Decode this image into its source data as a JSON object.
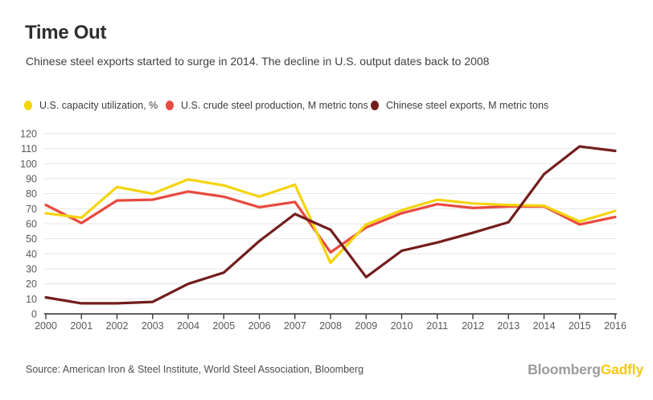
{
  "header": {
    "title": "Time Out",
    "subtitle": "Chinese steel exports started to surge in 2014. The decline in U.S. output dates back to 2008"
  },
  "legend": [
    {
      "label": "U.S. capacity utilization, %",
      "color": "#f5d40c"
    },
    {
      "label": "U.S. crude steel production, M metric tons",
      "color": "#e8493e"
    },
    {
      "label": "Chinese steel exports, M metric tons",
      "color": "#731d1d"
    }
  ],
  "chart_data": {
    "type": "line",
    "title": "Time Out",
    "subtitle": "Chinese steel exports started to surge in 2014. The decline in U.S. output dates back to 2008",
    "x": [
      2000,
      2001,
      2002,
      2003,
      2004,
      2005,
      2006,
      2007,
      2008,
      2009,
      2010,
      2011,
      2012,
      2013,
      2014,
      2015,
      2016
    ],
    "series": [
      {
        "name": "U.S. capacity utilization, %",
        "color": "#f5d40c",
        "values": [
          67,
          64,
          84.5,
          80,
          89.5,
          85.5,
          78,
          86,
          34,
          59.5,
          69,
          76,
          73.5,
          72.5,
          72,
          61.5,
          68.5
        ]
      },
      {
        "name": "U.S. crude steel production, M metric tons",
        "color": "#e8493e",
        "values": [
          72.5,
          60.5,
          75.5,
          76,
          81.5,
          78,
          71,
          74.5,
          41,
          57.5,
          67,
          73,
          70.5,
          71.5,
          71.5,
          59.5,
          64.5
        ]
      },
      {
        "name": "Chinese steel exports, M metric tons",
        "color": "#731d1d",
        "values": [
          11,
          7,
          7,
          8,
          20,
          27.5,
          48.5,
          66.5,
          56,
          24.5,
          42,
          47.5,
          54,
          61,
          93,
          111.5,
          108.5
        ]
      }
    ],
    "xlabel": "",
    "ylabel": "",
    "ylim": [
      0,
      120
    ],
    "ytick_step": 10,
    "grid": true,
    "legend_position": "top"
  },
  "footer": {
    "source": "Source: American Iron & Steel Institute, World Steel Association, Bloomberg",
    "logo": {
      "bloomberg": "Bloomberg",
      "gadfly": "Gadfly"
    }
  }
}
